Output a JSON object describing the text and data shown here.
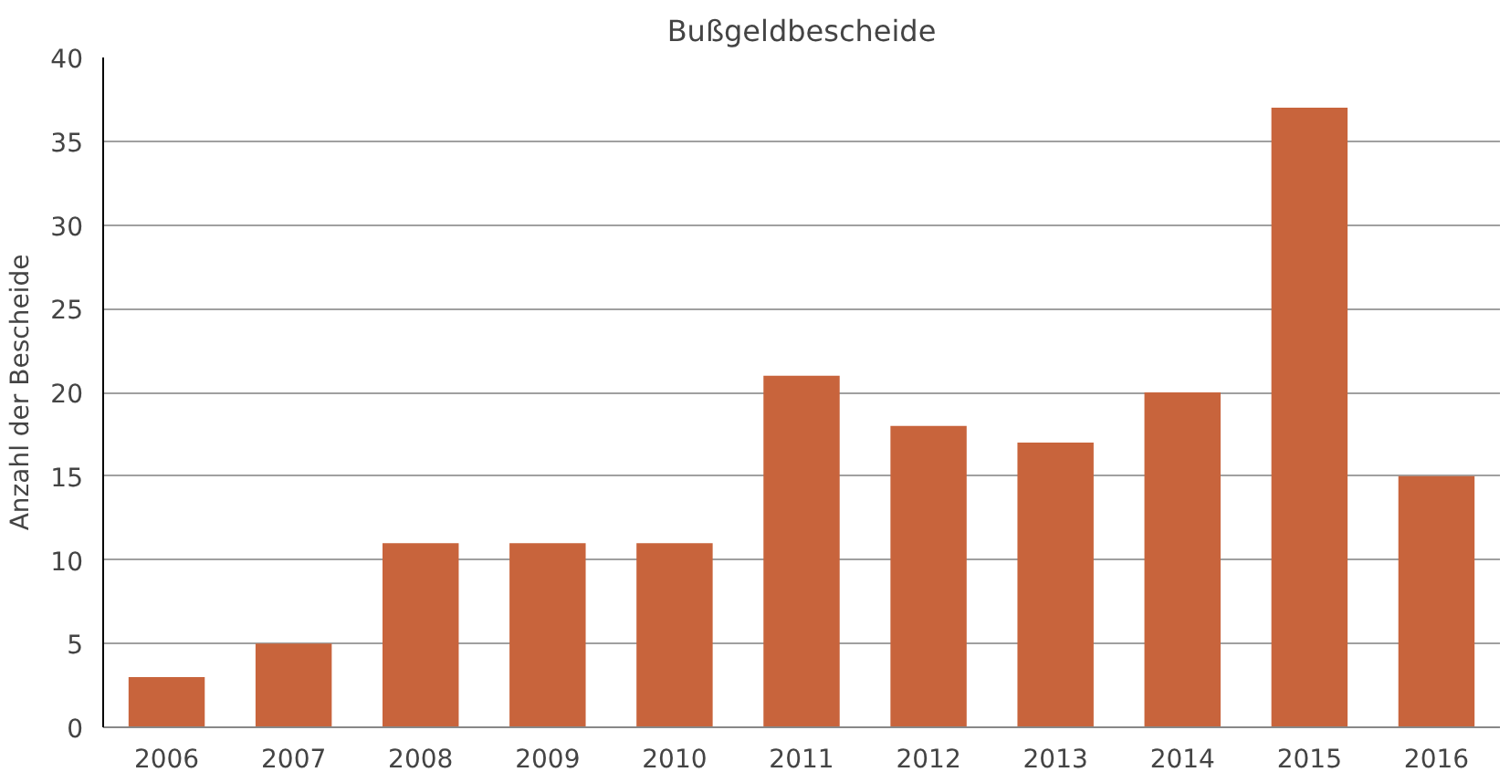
{
  "chart_data": {
    "type": "bar",
    "title": "Bußgeldbescheide",
    "ylabel": "Anzahl der Bescheide",
    "categories": [
      "2006",
      "2007",
      "2008",
      "2009",
      "2010",
      "2011",
      "2012",
      "2013",
      "2014",
      "2015",
      "2016"
    ],
    "values": [
      3,
      5,
      11,
      11,
      11,
      21,
      18,
      17,
      20,
      37,
      15
    ],
    "color": "#c8643c",
    "ylim": [
      0,
      40
    ],
    "yticks": [
      0,
      5,
      10,
      15,
      20,
      25,
      30,
      35,
      40
    ],
    "grid": "y"
  }
}
